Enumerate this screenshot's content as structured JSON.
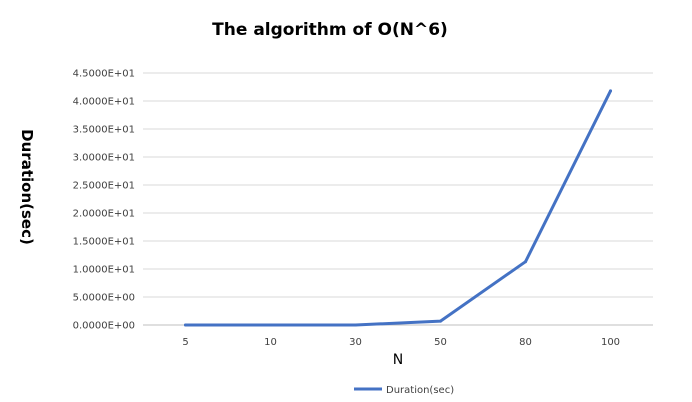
{
  "chart_data": {
    "type": "line",
    "title": "The algorithm of O(N^6)",
    "xlabel": "N",
    "ylabel": "Duration(sec)",
    "categories": [
      "5",
      "10",
      "30",
      "50",
      "80",
      "100"
    ],
    "series": [
      {
        "name": "Duration(sec)",
        "values": [
          0.0,
          0.0,
          0.0,
          0.7,
          11.3,
          41.8
        ],
        "color": "#4472C4"
      }
    ],
    "ylim": [
      0,
      45
    ],
    "ytick_step": 5,
    "y_tick_labels": [
      "0.0000E+00",
      "5.0000E+00",
      "1.0000E+01",
      "1.5000E+01",
      "2.0000E+01",
      "2.5000E+01",
      "3.0000E+01",
      "3.5000E+01",
      "4.0000E+01",
      "4.5000E+01"
    ],
    "grid": true,
    "legend": "bottom-center"
  }
}
